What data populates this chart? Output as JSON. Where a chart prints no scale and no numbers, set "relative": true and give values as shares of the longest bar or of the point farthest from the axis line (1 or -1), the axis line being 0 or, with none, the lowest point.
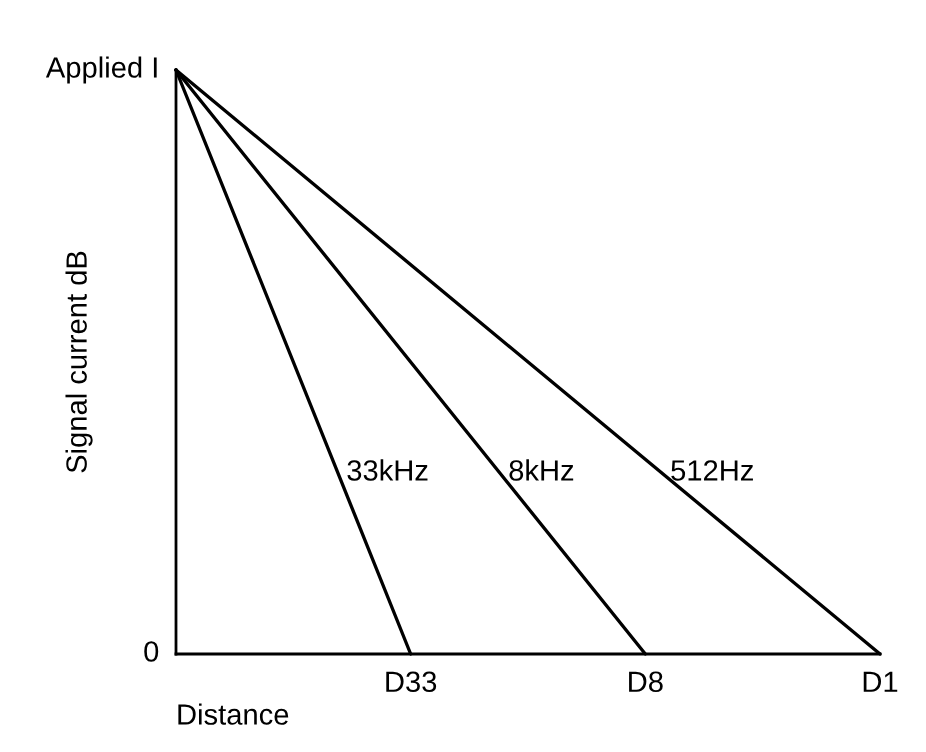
{
  "chart_data": {
    "type": "line",
    "relative": true,
    "xlabel": "Distance",
    "ylabel": "Signal current dB",
    "categories": [
      null,
      "D33",
      "D8",
      "D1"
    ],
    "annotations": [
      "Applied I",
      "0"
    ],
    "marker": "none",
    "line_style": "solid",
    "series": [
      {
        "name": "33kHz",
        "color": "#000000",
        "values": [
          1,
          0,
          null,
          null
        ]
      },
      {
        "name": "8kHz",
        "color": "#000000",
        "values": [
          1,
          null,
          0,
          null
        ]
      },
      {
        "name": "512Hz",
        "color": "#000000",
        "values": [
          1,
          null,
          null,
          0
        ]
      }
    ]
  }
}
